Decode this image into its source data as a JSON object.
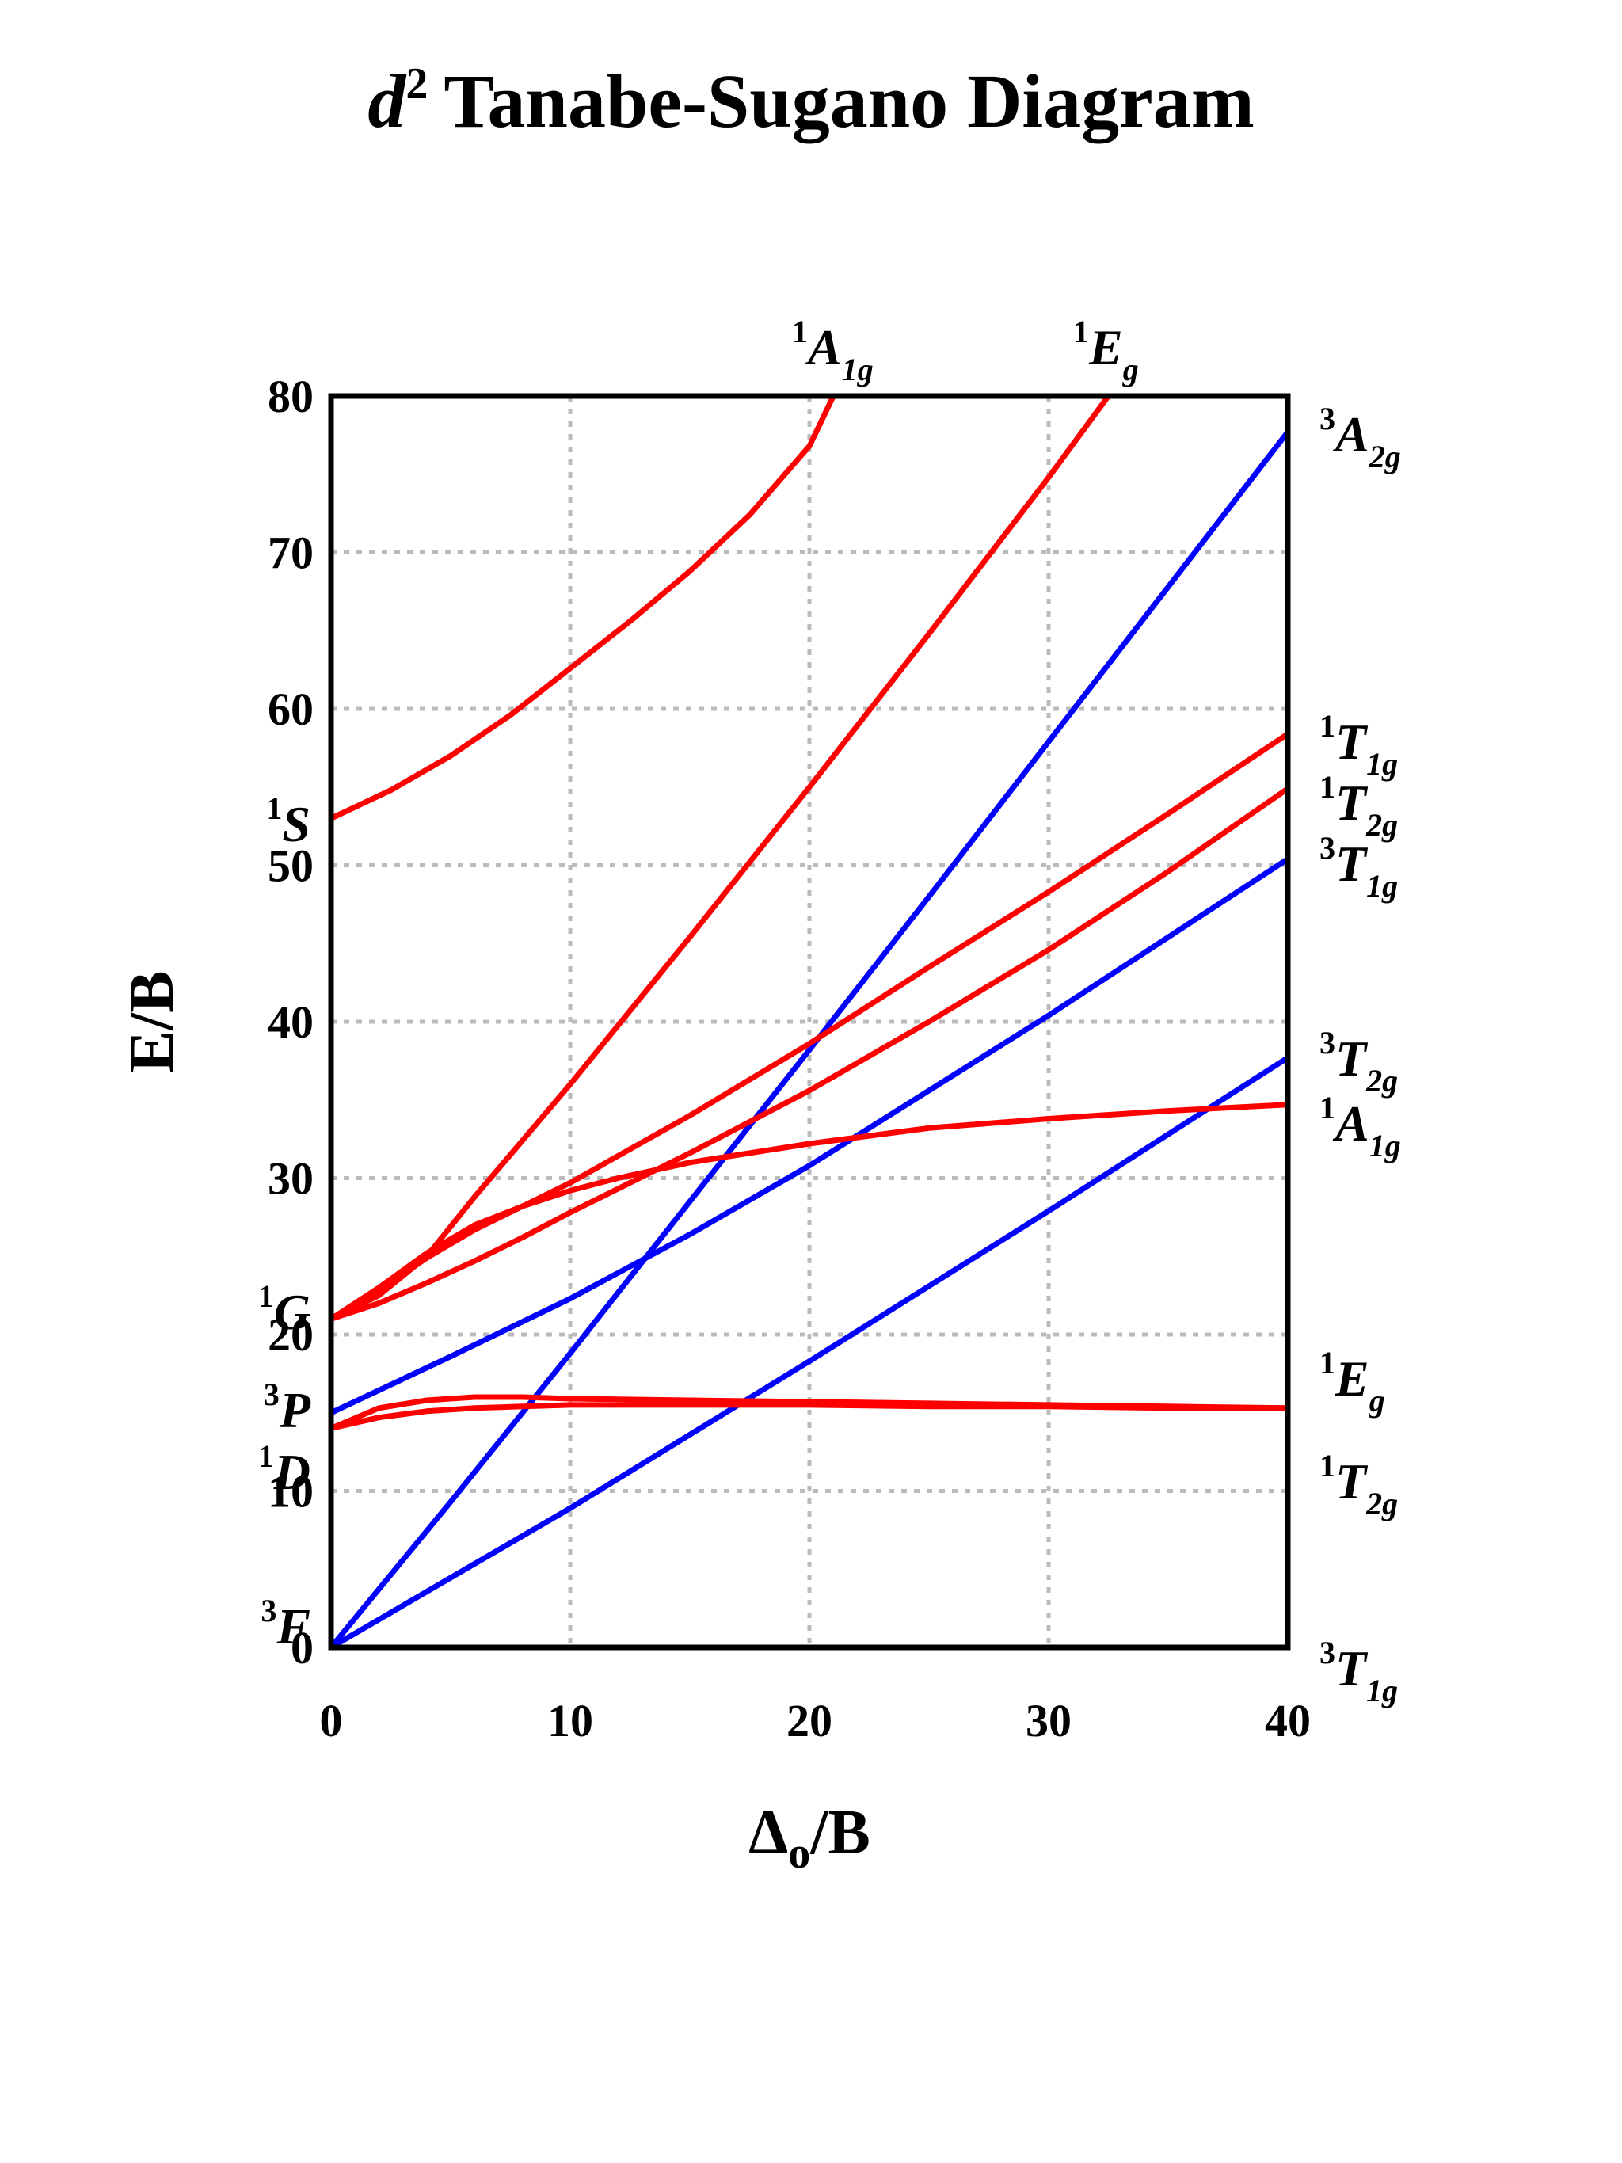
{
  "chart_data": {
    "type": "line",
    "title": {
      "prefix_italic": "d",
      "superscript": "2",
      "rest": "Tanabe-Sugano Diagram"
    },
    "xlabel": {
      "main": "Δ",
      "subscript": "o",
      "rest": "/B"
    },
    "ylabel": "E/B",
    "xlim": [
      0,
      40
    ],
    "ylim": [
      0,
      80
    ],
    "x_ticks": [
      0,
      10,
      20,
      30,
      40
    ],
    "y_ticks": [
      0,
      10,
      20,
      30,
      40,
      50,
      60,
      70,
      80
    ],
    "grid": true,
    "colors": {
      "singlet": "#ff0000",
      "triplet": "#0000ff",
      "free_ion_singlet_label": "#ff3300",
      "grid": "#bbbbbb"
    },
    "free_ion_terms": [
      {
        "mult": "1",
        "term": "S",
        "energy": 53,
        "multiplicity_class": "singlet"
      },
      {
        "mult": "1",
        "term": "G",
        "energy": 21,
        "multiplicity_class": "singlet"
      },
      {
        "mult": "3",
        "term": "P",
        "energy": 15,
        "multiplicity_class": "triplet"
      },
      {
        "mult": "1",
        "term": "D",
        "energy": 14,
        "multiplicity_class": "singlet"
      },
      {
        "mult": "3",
        "term": "F",
        "energy": 0,
        "multiplicity_class": "triplet"
      }
    ],
    "state_labels_right": [
      {
        "mult": "3",
        "letter": "A",
        "sub": "2g"
      },
      {
        "mult": "1",
        "letter": "T",
        "sub": "1g"
      },
      {
        "mult": "1",
        "letter": "T",
        "sub": "2g"
      },
      {
        "mult": "3",
        "letter": "T",
        "sub": "1g"
      },
      {
        "mult": "3",
        "letter": "T",
        "sub": "2g"
      },
      {
        "mult": "1",
        "letter": "A",
        "sub": "1g"
      },
      {
        "mult": "1",
        "letter": "E",
        "sub": "g"
      },
      {
        "mult": "1",
        "letter": "T",
        "sub": "2g"
      },
      {
        "mult": "3",
        "letter": "T",
        "sub": "1g"
      }
    ],
    "state_labels_top": [
      {
        "mult": "1",
        "letter": "A",
        "sub": "1g"
      },
      {
        "mult": "1",
        "letter": "E",
        "sub": "g"
      }
    ],
    "series": [
      {
        "state": "3T1g ground",
        "multiplicity_class": "triplet",
        "x": [
          0,
          40
        ],
        "y": [
          0,
          0
        ]
      },
      {
        "state": "3T2g",
        "multiplicity_class": "triplet",
        "x": [
          0,
          10,
          20,
          30,
          40
        ],
        "y": [
          0,
          8.9,
          18.3,
          27.9,
          37.7
        ]
      },
      {
        "state": "3A2g",
        "multiplicity_class": "triplet",
        "x": [
          0,
          5,
          10,
          15,
          20,
          25,
          30,
          35,
          40
        ],
        "y": [
          0,
          9.3,
          18.8,
          28.5,
          38.2,
          48.0,
          57.9,
          67.8,
          77.7
        ]
      },
      {
        "state": "3T1g(P)",
        "multiplicity_class": "triplet",
        "x": [
          0,
          5,
          10,
          15,
          20,
          25,
          30,
          35,
          40
        ],
        "y": [
          15,
          18.6,
          22.3,
          26.4,
          30.8,
          35.6,
          40.4,
          45.4,
          50.4
        ]
      },
      {
        "state": "1Eg",
        "multiplicity_class": "singlet",
        "x": [
          0,
          2,
          4,
          6,
          8,
          10,
          15,
          20,
          25,
          30,
          35,
          40
        ],
        "y": [
          14,
          15.3,
          15.8,
          16.0,
          16.0,
          15.9,
          15.8,
          15.7,
          15.6,
          15.5,
          15.4,
          15.3
        ]
      },
      {
        "state": "1T2g",
        "multiplicity_class": "singlet",
        "x": [
          0,
          2,
          4,
          6,
          8,
          10,
          15,
          20,
          25,
          30,
          35,
          40
        ],
        "y": [
          14,
          14.7,
          15.1,
          15.3,
          15.4,
          15.5,
          15.5,
          15.5,
          15.4,
          15.4,
          15.3,
          15.3
        ]
      },
      {
        "state": "1A1g(G)",
        "multiplicity_class": "singlet",
        "x": [
          0,
          2,
          4,
          6,
          8,
          10,
          12,
          15,
          20,
          25,
          30,
          35,
          40
        ],
        "y": [
          21,
          23.0,
          25.2,
          27.0,
          28.2,
          29.2,
          30.0,
          31.0,
          32.2,
          33.2,
          33.8,
          34.3,
          34.7
        ]
      },
      {
        "state": "1T2g(G)",
        "multiplicity_class": "singlet",
        "x": [
          0,
          2,
          4,
          6,
          8,
          10,
          15,
          20,
          25,
          30,
          35,
          40
        ],
        "y": [
          21,
          22.0,
          23.3,
          24.7,
          26.2,
          27.8,
          31.6,
          35.6,
          40.0,
          44.6,
          49.6,
          54.9
        ]
      },
      {
        "state": "1T1g",
        "multiplicity_class": "singlet",
        "x": [
          0,
          2,
          4,
          6,
          8,
          10,
          15,
          20,
          25,
          30,
          35,
          40
        ],
        "y": [
          21,
          22.8,
          24.9,
          26.7,
          28.2,
          29.7,
          34.0,
          38.6,
          43.5,
          48.3,
          53.3,
          58.4
        ]
      },
      {
        "state": "1Eg(upper)",
        "multiplicity_class": "singlet",
        "x": [
          0,
          2,
          4,
          6,
          8,
          10,
          15,
          20,
          25,
          30,
          32.5
        ],
        "y": [
          21,
          22.5,
          25.0,
          28.8,
          32.4,
          36.0,
          45.4,
          55.0,
          64.8,
          74.8,
          80
        ]
      },
      {
        "state": "1A1g(S)",
        "multiplicity_class": "singlet",
        "x": [
          0,
          2.5,
          5,
          7.5,
          10,
          12.5,
          15,
          17.5,
          20,
          21
        ],
        "y": [
          53,
          54.8,
          57.0,
          59.6,
          62.6,
          65.6,
          68.8,
          72.4,
          76.8,
          80
        ]
      }
    ]
  }
}
